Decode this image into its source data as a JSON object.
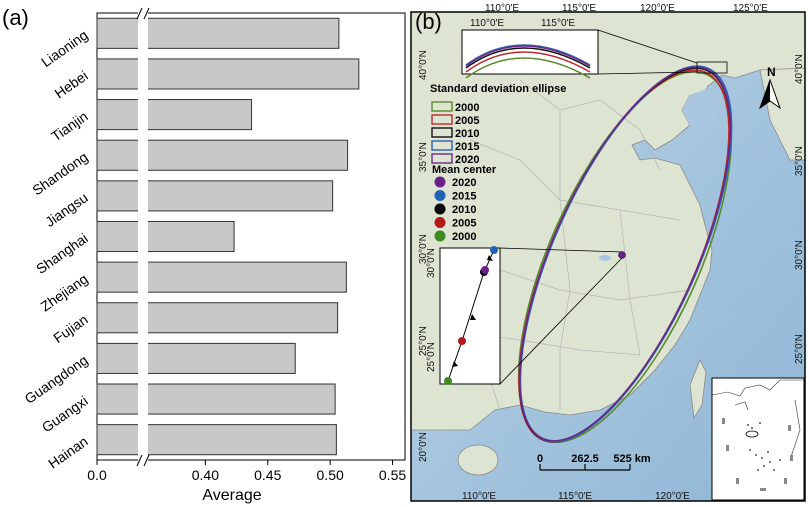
{
  "panel_a": {
    "label": "(a)",
    "chart_data": {
      "type": "bar",
      "orientation": "horizontal",
      "categories": [
        "Liaoning",
        "Hebei",
        "Tianjin",
        "Shandong",
        "Jiangsu",
        "Shanghai",
        "Zhejiang",
        "Fujian",
        "Guangdong",
        "Guangxi",
        "Hainan"
      ],
      "values": [
        0.507,
        0.523,
        0.437,
        0.514,
        0.502,
        0.423,
        0.513,
        0.506,
        0.472,
        0.504,
        0.505
      ],
      "xlabel": "Average",
      "axis_break": {
        "from": 0.0,
        "to": 0.35
      },
      "xticks": [
        0.0,
        0.4,
        0.45,
        0.5,
        0.55
      ],
      "xtick_labels": [
        "0.0",
        "0.40",
        "0.45",
        "0.50",
        "0.55"
      ],
      "xlim": [
        0.35,
        0.56
      ],
      "bar_color": "#c8c8c8",
      "edge_color": "#333333"
    }
  },
  "panel_b": {
    "label": "(b)",
    "lon_ticks_top": [
      "110°0'E",
      "115°0'E",
      "120°0'E",
      "125°0'E"
    ],
    "lon_ticks_bottom": [
      "110°0'E",
      "115°0'E",
      "120°0'E"
    ],
    "lat_ticks_left": [
      "40°0'N",
      "35°0'N",
      "30°0'N",
      "25°0'N",
      "20°0'N"
    ],
    "lat_ticks_right": [
      "40°0'N",
      "35°0'N",
      "30°0'N",
      "25°0'N"
    ],
    "inset_top_ticks": [
      "110°0'E",
      "115°0'E"
    ],
    "inset_left_ticks": [
      "30°0'N",
      "25°0'N"
    ],
    "north_label": "N",
    "legend": {
      "ellipse_title": "Standard deviation ellipse",
      "ellipses": [
        {
          "year": "2000",
          "color": "#5a8a2a"
        },
        {
          "year": "2005",
          "color": "#c0282a"
        },
        {
          "year": "2010",
          "color": "#111111"
        },
        {
          "year": "2015",
          "color": "#2f5fb5"
        },
        {
          "year": "2020",
          "color": "#6a2a85"
        }
      ],
      "center_title": "Mean center",
      "centers": [
        {
          "year": "2020",
          "color": "#6a1f8a"
        },
        {
          "year": "2015",
          "color": "#1f63b8"
        },
        {
          "year": "2010",
          "color": "#000000"
        },
        {
          "year": "2005",
          "color": "#b3191b"
        },
        {
          "year": "2000",
          "color": "#3f8a1f"
        }
      ]
    },
    "scale_bar": {
      "labels": [
        "0",
        "262.5",
        "525 km"
      ]
    },
    "colors": {
      "sea": "#a9c7e0",
      "land": "#dde4d2",
      "province": "#c4c4c4",
      "frame": "#000000"
    }
  }
}
